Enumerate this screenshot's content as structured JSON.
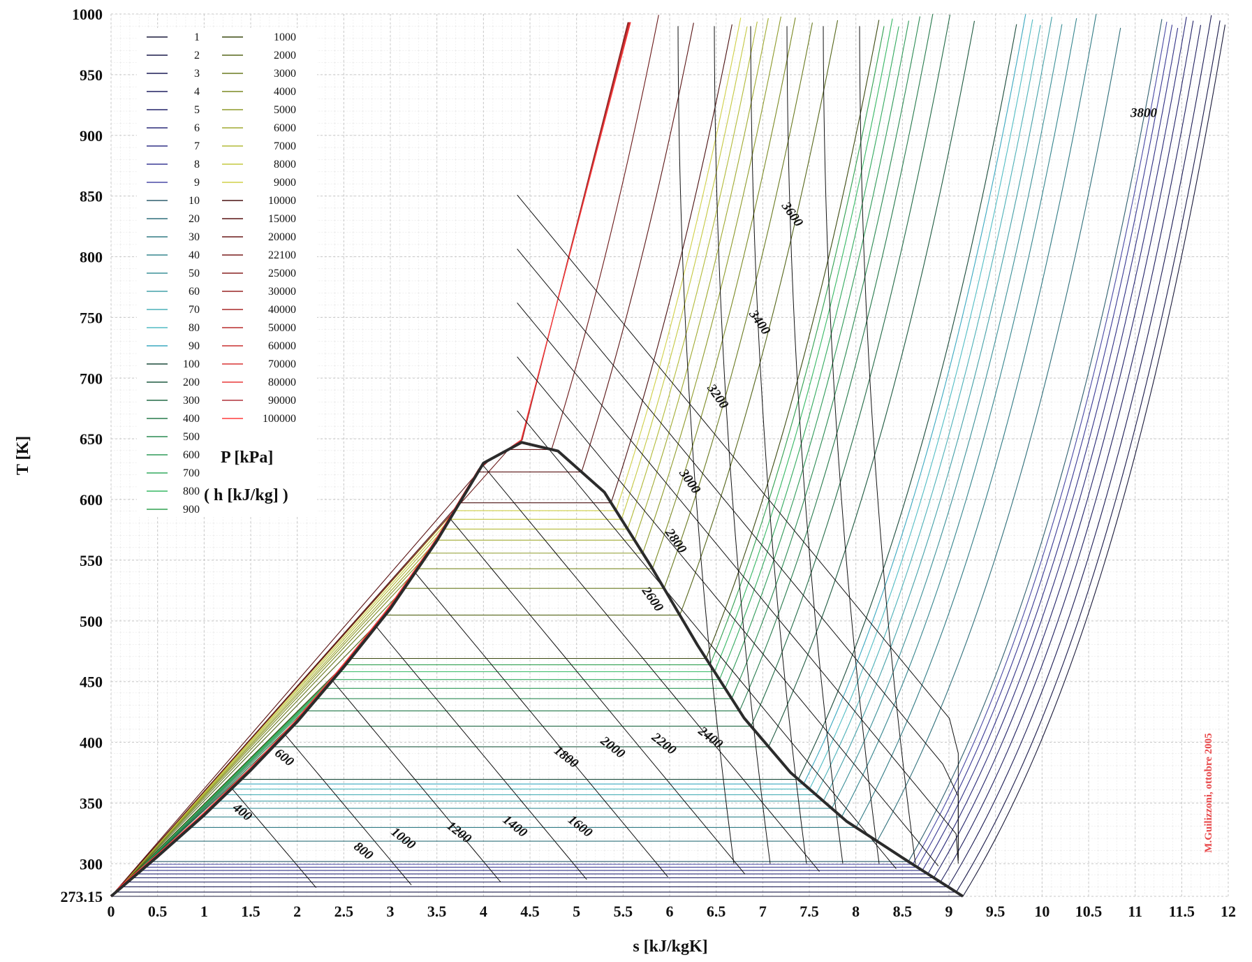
{
  "chart_data": {
    "type": "line",
    "title": "",
    "xlabel": "s [kJ/kgK]",
    "ylabel": "T [K]",
    "xlim": [
      0,
      12
    ],
    "ylim": [
      273.15,
      1000
    ],
    "x_ticks": [
      "0",
      "0.5",
      "1",
      "1.5",
      "2",
      "2.5",
      "3",
      "3.5",
      "4",
      "4.5",
      "5",
      "5.5",
      "6",
      "6.5",
      "7",
      "7.5",
      "8",
      "8.5",
      "9",
      "9.5",
      "10",
      "10.5",
      "11",
      "11.5",
      "12"
    ],
    "y_ticks": [
      "273.15",
      "300",
      "350",
      "400",
      "450",
      "500",
      "550",
      "600",
      "650",
      "700",
      "750",
      "800",
      "850",
      "900",
      "950",
      "1000"
    ],
    "grid": true,
    "legend_placement": "top-left",
    "legend_title": "P [kPa]",
    "legend_subtitle": "( h [kJ/kg] )",
    "pressure_isobars_kPa": [
      "1",
      "2",
      "3",
      "4",
      "5",
      "6",
      "7",
      "8",
      "9",
      "10",
      "20",
      "30",
      "40",
      "50",
      "60",
      "70",
      "80",
      "90",
      "100",
      "200",
      "300",
      "400",
      "500",
      "600",
      "700",
      "800",
      "900",
      "1000",
      "2000",
      "3000",
      "4000",
      "5000",
      "6000",
      "7000",
      "8000",
      "9000",
      "10000",
      "15000",
      "20000",
      "22100",
      "25000",
      "30000",
      "40000",
      "50000",
      "60000",
      "70000",
      "80000",
      "90000",
      "100000"
    ],
    "isobar_colors": [
      "#1a1a3a",
      "#1a1a4a",
      "#1c1c55",
      "#202060",
      "#24246a",
      "#2a2a78",
      "#303085",
      "#3a3a95",
      "#4a4aa5",
      "#2f5f6f",
      "#2f6f7a",
      "#307a84",
      "#35858e",
      "#3c9098",
      "#44a0a8",
      "#4cb0b8",
      "#50bcc4",
      "#3aa8c0",
      "#1a4a3a",
      "#1e5a40",
      "#226a46",
      "#267a4c",
      "#2a8a52",
      "#2e9a58",
      "#32aa5e",
      "#36b864",
      "#30a050",
      "#3c4a10",
      "#56661a",
      "#6a7a20",
      "#7c8a24",
      "#8e9a2a",
      "#a0aa30",
      "#b2ba38",
      "#c4c840",
      "#d0d048",
      "#4a1010",
      "#5a1414",
      "#6a1818",
      "#781c1c",
      "#882020",
      "#982424",
      "#a82828",
      "#b82c2c",
      "#c83030",
      "#d83434",
      "#e83838",
      "#b0303a",
      "#ff3b3b"
    ],
    "enthalpy_labels_kJkg": [
      "400",
      "600",
      "800",
      "1000",
      "1200",
      "1400",
      "1600",
      "1800",
      "2000",
      "2200",
      "2400",
      "2600",
      "2800",
      "3000",
      "3200",
      "3400",
      "3600",
      "3800"
    ],
    "saturation_dome": {
      "s": [
        0,
        0.5,
        1.0,
        1.5,
        2.0,
        2.5,
        3.0,
        3.5,
        4.0,
        4.41,
        4.8,
        5.3,
        5.8,
        6.3,
        6.8,
        7.3,
        7.9,
        8.5,
        9.15
      ],
      "T": [
        273.15,
        306,
        340,
        377,
        417,
        462,
        510,
        566,
        630,
        647.1,
        640,
        606,
        545,
        480,
        420,
        375,
        335,
        305,
        273.15
      ]
    },
    "critical_point": {
      "s": 4.41,
      "T": 647.1
    },
    "credit": "M.Guilizzoni, ottobre 2005"
  }
}
